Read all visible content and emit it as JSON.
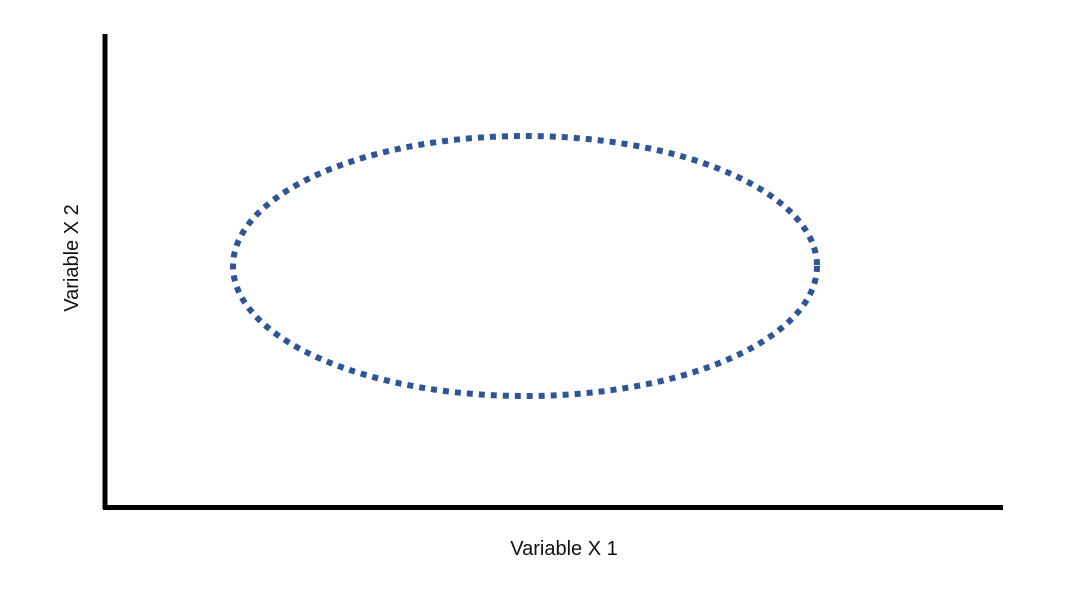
{
  "diagram": {
    "x_axis_label": "Variable X 1",
    "y_axis_label": "Variable X 2",
    "axis_color": "#000000",
    "ellipse_color": "#2f5597",
    "ellipse_style": "dotted"
  }
}
